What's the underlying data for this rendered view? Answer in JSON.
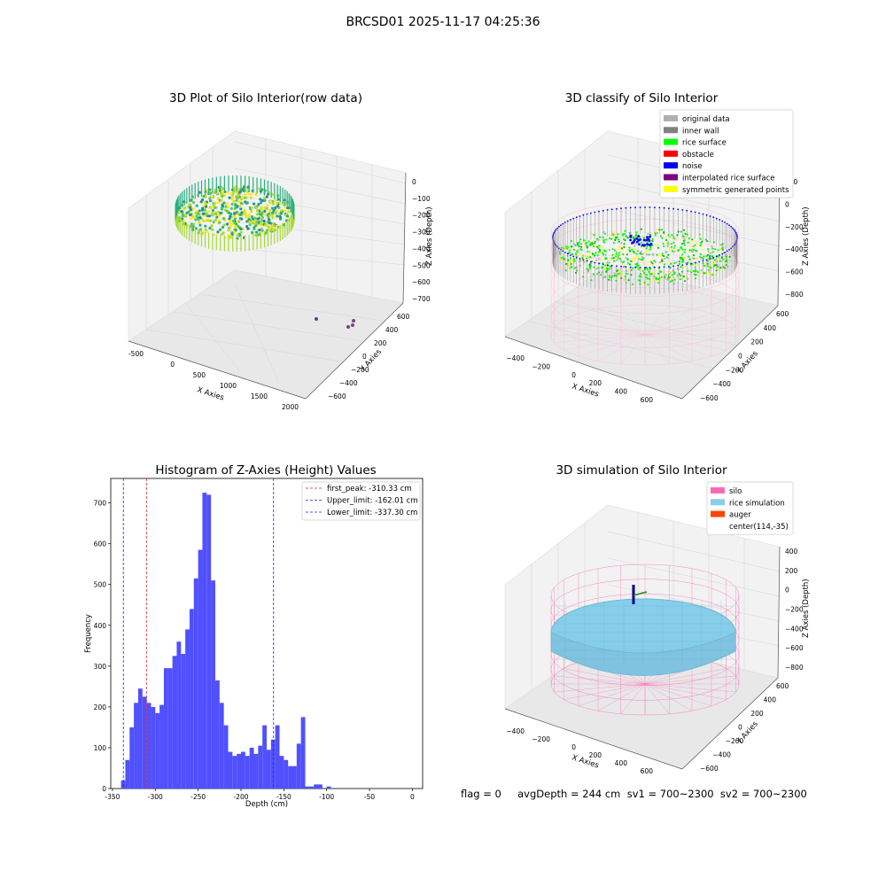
{
  "figure": {
    "suptitle": "BRCSD01 2025-11-17 04:25:36",
    "footer": "flag = 0     avgDepth = 244 cm  sv1 = 700~2300  sv2 = 700~2300"
  },
  "colors": {
    "bars": "#5050ff",
    "first_peak": "#e02020",
    "limits": "#2020e0",
    "silo": "#ff69b4",
    "rice": "#87ceeb",
    "rice_surface": "#00ff00",
    "noise": "#0000ff",
    "wall": "#808080"
  },
  "chart_data": [
    {
      "type": "scatter3d",
      "title": "3D Plot of Silo Interior(row data)",
      "xlabel": "X Axies",
      "ylabel": "Y Axies",
      "zlabel": "Z Axies (Depth)",
      "xticks": [
        "-500",
        "0",
        "500",
        "1000",
        "1500",
        "2000"
      ],
      "yticks": [
        "600",
        "400",
        "200",
        "0",
        "−200",
        "−400",
        "−600"
      ],
      "zticks": [
        "0",
        "−100",
        "−200",
        "−300",
        "−400",
        "−500",
        "−600",
        "−700"
      ],
      "xlim": [
        -600,
        2000
      ],
      "ylim": [
        -600,
        600
      ],
      "zlim": [
        -700,
        0
      ],
      "colormap": "viridis"
    },
    {
      "type": "scatter3d",
      "title": "3D classify of Silo Interior",
      "xlabel": "X Axies",
      "ylabel": "Y Axies",
      "zlabel": "Z Axies (Depth)",
      "xticks": [
        "−400",
        "−200",
        "0",
        "200",
        "400",
        "600"
      ],
      "yticks": [
        "600",
        "400",
        "200",
        "0",
        "−200",
        "−400",
        "−600"
      ],
      "zticks": [
        "200",
        "0",
        "−200",
        "−400",
        "−600",
        "−800"
      ],
      "legend": [
        {
          "label": "original data",
          "color": "#b0b0b0"
        },
        {
          "label": "inner wall",
          "color": "#808080"
        },
        {
          "label": "rice surface",
          "color": "#00ff00"
        },
        {
          "label": "obstacle",
          "color": "#ff0000"
        },
        {
          "label": "noise",
          "color": "#0000ff"
        },
        {
          "label": "interpolated rice surface",
          "color": "#800080"
        },
        {
          "label": "symmetric generated points",
          "color": "#ffff00"
        }
      ]
    },
    {
      "type": "bar",
      "title": "Histogram of Z-Axies (Height) Values",
      "xlabel": "Depth (cm)",
      "ylabel": "Frequency",
      "xlim": [
        -352,
        12
      ],
      "ylim": [
        0,
        760
      ],
      "xticks": [
        "-350",
        "-300",
        "-250",
        "-200",
        "-150",
        "-100",
        "-50",
        "0"
      ],
      "xtick_values": [
        -350,
        -300,
        -250,
        -200,
        -150,
        -100,
        -50,
        0
      ],
      "yticks": [
        "0",
        "100",
        "200",
        "300",
        "400",
        "500",
        "600",
        "700"
      ],
      "ytick_values": [
        0,
        100,
        200,
        300,
        400,
        500,
        600,
        700
      ],
      "bin_start": -340,
      "bin_width": 5,
      "values": [
        20,
        70,
        150,
        210,
        245,
        225,
        210,
        200,
        185,
        205,
        295,
        295,
        325,
        360,
        330,
        390,
        440,
        515,
        585,
        725,
        720,
        510,
        265,
        210,
        155,
        90,
        80,
        85,
        90,
        80,
        100,
        85,
        105,
        155,
        95,
        120,
        155,
        80,
        70,
        55,
        55,
        110,
        175,
        5,
        5,
        10,
        10,
        0,
        5
      ],
      "lines": [
        {
          "label": "first_peak: -310.33 cm",
          "x": -310.33,
          "color": "#e02020"
        },
        {
          "label": "Upper_limit: -162.01 cm",
          "x": -162.01,
          "color": "#2020e0"
        },
        {
          "label": "Lower_limit: -337.30 cm",
          "x": -337.3,
          "color": "#2020e0"
        }
      ]
    },
    {
      "type": "surface3d",
      "title": "3D simulation of Silo Interior",
      "xlabel": "X Axies",
      "ylabel": "Y Axies",
      "zlabel": "Z Axies (Depth)",
      "xticks": [
        "−400",
        "−200",
        "0",
        "200",
        "400",
        "600"
      ],
      "yticks": [
        "600",
        "400",
        "200",
        "0",
        "−200",
        "−400",
        "−600"
      ],
      "zticks": [
        "400",
        "200",
        "0",
        "−200",
        "−400",
        "−600",
        "−800"
      ],
      "legend": [
        {
          "label": "silo",
          "color": "#ff69b4"
        },
        {
          "label": "rice simulation",
          "color": "#87ceeb"
        },
        {
          "label": "auger",
          "color": "#ff4500"
        },
        {
          "label": "center(114,-35)",
          "color": ""
        }
      ]
    }
  ]
}
